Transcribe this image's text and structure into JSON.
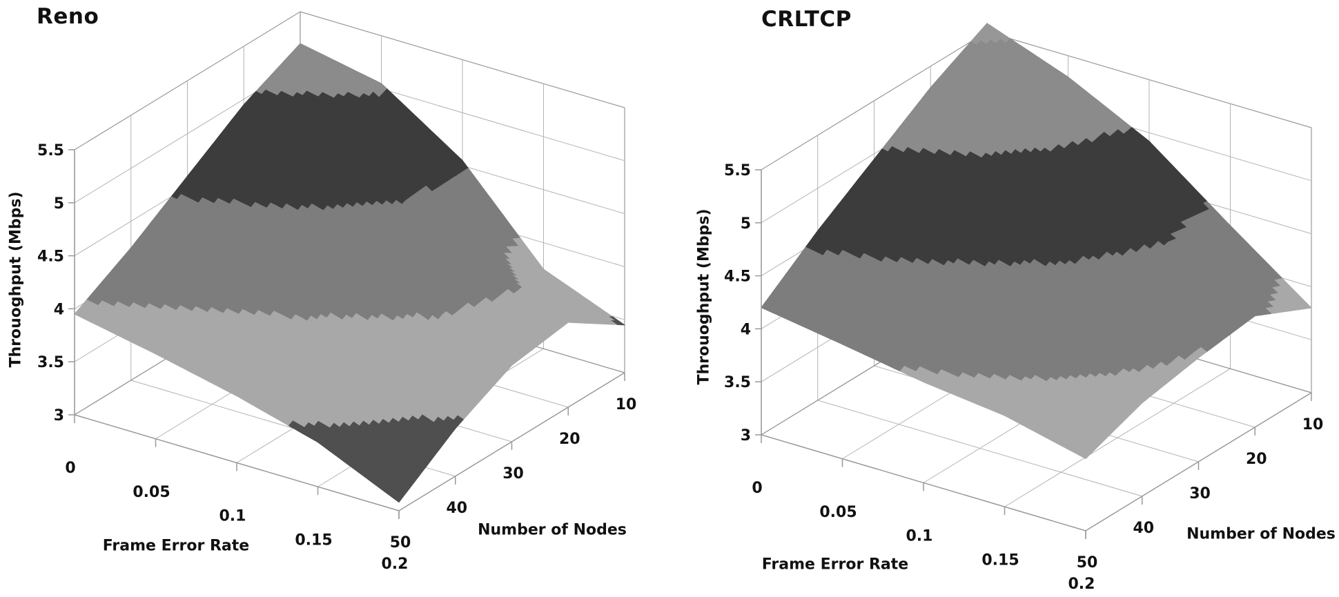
{
  "figure": {
    "background": "#ffffff",
    "grid_color": "#b3b3b3",
    "frame_color": "#999999",
    "text_color": "#111111"
  },
  "chart_data": [
    {
      "type": "surface3d",
      "title": "Reno",
      "xlabel": "Frame Error Rate",
      "ylabel": "Number of Nodes",
      "zlabel": "Throuoghput (Mbps)",
      "x": [
        0,
        0.05,
        0.1,
        0.15,
        0.2
      ],
      "y": [
        10,
        20,
        30,
        40,
        50
      ],
      "x_tick_labels": [
        "0",
        "0.05",
        "0.1",
        "0.15",
        "0.2"
      ],
      "y_tick_labels": [
        "10",
        "20",
        "30",
        "40",
        "50"
      ],
      "z_tick_labels": [
        "3",
        "3.5",
        "4",
        "4.5",
        "5",
        "5.5"
      ],
      "zlim": [
        3,
        5.5
      ],
      "band_size": 0.5,
      "band_colors": [
        "#4f4f4f",
        "#a8a8a8",
        "#7d7d7d",
        "#3c3c3c",
        "#8b8b8b",
        "#979797"
      ],
      "band_ranges": [
        "3-3.5",
        "3.5-4",
        "4-4.5",
        "4.5-5",
        "5-5.5",
        "5.5-6"
      ],
      "z": [
        [
          5.2,
          4.95,
          4.6,
          4.25,
          3.95
        ],
        [
          5.05,
          4.8,
          4.45,
          4.1,
          3.8
        ],
        [
          4.55,
          4.5,
          4.28,
          3.95,
          3.63
        ],
        [
          3.75,
          4.15,
          4.05,
          3.72,
          3.42
        ],
        [
          3.45,
          3.8,
          3.72,
          3.45,
          3.08
        ]
      ],
      "z_rows_are": "frame_error_rate",
      "z_cols_are": "number_of_nodes"
    },
    {
      "type": "surface3d",
      "title": "CRLTCP",
      "xlabel": "Frame Error Rate",
      "ylabel": "Number of Nodes",
      "zlabel": "Throuoghput (Mbps)",
      "x": [
        0,
        0.05,
        0.1,
        0.15,
        0.2
      ],
      "y": [
        10,
        20,
        30,
        40,
        50
      ],
      "x_tick_labels": [
        "0",
        "0.05",
        "0.1",
        "0.15",
        "0.2"
      ],
      "y_tick_labels": [
        "10",
        "20",
        "30",
        "40",
        "50"
      ],
      "z_tick_labels": [
        "3",
        "3.5",
        "4",
        "4.5",
        "5",
        "5.5"
      ],
      "zlim": [
        3,
        5.5
      ],
      "band_size": 0.5,
      "band_colors": [
        "#4f4f4f",
        "#a8a8a8",
        "#7d7d7d",
        "#3c3c3c",
        "#8b8b8b",
        "#979797"
      ],
      "band_ranges": [
        "3-3.5",
        "3.5-4",
        "4-4.5",
        "4.5-5",
        "5-5.5",
        "5.5-6"
      ],
      "z": [
        [
          5.58,
          5.3,
          4.95,
          4.6,
          4.2
        ],
        [
          5.3,
          5.1,
          4.8,
          4.45,
          4.08
        ],
        [
          4.92,
          4.82,
          4.58,
          4.28,
          3.95
        ],
        [
          4.35,
          4.48,
          4.32,
          4.08,
          3.86
        ],
        [
          3.8,
          4.05,
          3.98,
          3.88,
          3.68
        ]
      ],
      "z_rows_are": "frame_error_rate",
      "z_cols_are": "number_of_nodes"
    }
  ]
}
